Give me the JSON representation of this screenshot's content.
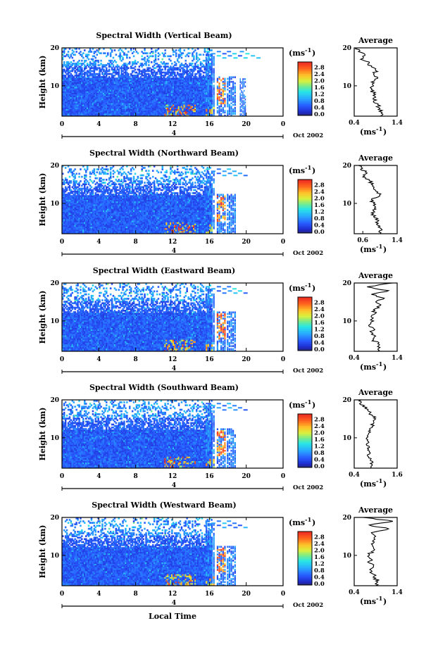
{
  "figure": {
    "xlabel": "Local Time",
    "date_label": "Oct 2002",
    "sub_axis_label": "4",
    "ylabel": "Height (km)",
    "colorbar_unit": "(ms",
    "colorbar_unit_exp": "-1",
    "colorbar_unit_close": ")",
    "profile_title": "Average"
  },
  "chart_data": [
    {
      "type": "heatmap",
      "title": "Spectral Width (Vertical Beam)",
      "x_ticks": [
        "0",
        "4",
        "8",
        "12",
        "16",
        "20",
        "0"
      ],
      "xlim": [
        0,
        24
      ],
      "y_ticks": [
        "20",
        "10"
      ],
      "ylim": [
        2,
        20
      ],
      "colorbar_ticks": [
        "2.8",
        "2.4",
        "2.0",
        "1.6",
        "1.2",
        "0.8",
        "0.4",
        "0.0"
      ],
      "colorbar_range": [
        0,
        3.2
      ],
      "profile": {
        "x_ticks": [
          "0.4",
          "1.4"
        ],
        "xlim": [
          0.4,
          1.4
        ],
        "y_ticks": [
          "20",
          "10"
        ],
        "heights": [
          20,
          19,
          18,
          17,
          16,
          15,
          14,
          13,
          12,
          11,
          10,
          9,
          8,
          7,
          6,
          5,
          4,
          3,
          2
        ],
        "values": [
          0.45,
          0.5,
          0.65,
          0.55,
          0.75,
          0.8,
          0.9,
          0.85,
          0.95,
          0.8,
          0.85,
          0.8,
          0.85,
          0.9,
          0.85,
          0.95,
          1.0,
          1.05,
          1.0
        ]
      }
    },
    {
      "type": "heatmap",
      "title": "Spectral Width (Northward Beam)",
      "x_ticks": [
        "0",
        "4",
        "8",
        "12",
        "16",
        "20",
        "0"
      ],
      "xlim": [
        0,
        24
      ],
      "y_ticks": [
        "20",
        "10"
      ],
      "ylim": [
        2,
        20
      ],
      "colorbar_ticks": [
        "2.8",
        "2.4",
        "2.0",
        "1.6",
        "1.2",
        "0.8",
        "0.4",
        "0.0"
      ],
      "colorbar_range": [
        0,
        3.2
      ],
      "profile": {
        "x_ticks": [
          "0.6",
          "1.4"
        ],
        "xlim": [
          0.4,
          1.4
        ],
        "y_ticks": [
          "20",
          "10"
        ],
        "heights": [
          20,
          19,
          18,
          17,
          16,
          15,
          14,
          13,
          12,
          11,
          10,
          9,
          8,
          7,
          6,
          5,
          4,
          3,
          2
        ],
        "values": [
          0.5,
          0.55,
          0.7,
          0.6,
          0.75,
          0.8,
          0.85,
          0.95,
          1.0,
          0.8,
          0.85,
          0.9,
          0.85,
          0.8,
          0.95,
          0.9,
          1.0,
          1.05,
          1.0
        ]
      }
    },
    {
      "type": "heatmap",
      "title": "Spectral Width (Eastward Beam)",
      "x_ticks": [
        "0",
        "4",
        "8",
        "12",
        "16",
        "20",
        "0"
      ],
      "xlim": [
        0,
        24
      ],
      "y_ticks": [
        "20",
        "10"
      ],
      "ylim": [
        2,
        20
      ],
      "colorbar_ticks": [
        "2.8",
        "2.4",
        "2.0",
        "1.6",
        "1.2",
        "0.8",
        "0.4",
        "0.0"
      ],
      "colorbar_range": [
        0,
        3.2
      ],
      "profile": {
        "x_ticks": [
          "0.4",
          "1.4"
        ],
        "xlim": [
          0.4,
          1.4
        ],
        "y_ticks": [
          "20",
          "10"
        ],
        "heights": [
          20,
          19,
          18,
          17,
          16,
          15,
          14,
          13,
          12,
          11,
          10,
          9,
          8,
          7,
          6,
          5,
          4,
          3,
          2
        ],
        "values": [
          1.3,
          0.7,
          1.2,
          0.8,
          1.1,
          0.9,
          1.0,
          0.85,
          0.9,
          0.8,
          0.85,
          0.75,
          0.85,
          0.8,
          0.9,
          0.85,
          0.95,
          1.0,
          0.95
        ]
      }
    },
    {
      "type": "heatmap",
      "title": "Spectral Width (Southward Beam)",
      "x_ticks": [
        "0",
        "4",
        "8",
        "12",
        "16",
        "20",
        "0"
      ],
      "xlim": [
        0,
        24
      ],
      "y_ticks": [
        "20",
        "10"
      ],
      "ylim": [
        2,
        20
      ],
      "colorbar_ticks": [
        "2.8",
        "2.4",
        "2.0",
        "1.6",
        "1.2",
        "0.8",
        "0.4",
        "0.0"
      ],
      "colorbar_range": [
        0,
        3.2
      ],
      "profile": {
        "x_ticks": [
          "0.4",
          "1.6"
        ],
        "xlim": [
          0.4,
          1.6
        ],
        "y_ticks": [
          "20",
          "10"
        ],
        "heights": [
          20,
          19,
          18,
          17,
          16,
          15,
          14,
          13,
          12,
          11,
          10,
          9,
          8,
          7,
          6,
          5,
          4,
          3,
          2
        ],
        "values": [
          0.6,
          0.55,
          0.75,
          0.8,
          0.9,
          1.0,
          0.95,
          0.9,
          0.85,
          0.8,
          0.75,
          0.8,
          0.75,
          0.8,
          0.85,
          0.8,
          0.85,
          0.9,
          0.85
        ]
      }
    },
    {
      "type": "heatmap",
      "title": "Spectral Width (Westward Beam)",
      "x_ticks": [
        "0",
        "4",
        "8",
        "12",
        "16",
        "20",
        "0"
      ],
      "xlim": [
        0,
        24
      ],
      "y_ticks": [
        "20",
        "10"
      ],
      "ylim": [
        2,
        20
      ],
      "colorbar_ticks": [
        "2.8",
        "2.4",
        "2.0",
        "1.6",
        "1.2",
        "0.8",
        "0.4",
        "0.0"
      ],
      "colorbar_range": [
        0,
        3.2
      ],
      "profile": {
        "x_ticks": [
          "0.4",
          "1.4"
        ],
        "xlim": [
          0.4,
          1.4
        ],
        "y_ticks": [
          "20",
          "10"
        ],
        "heights": [
          20,
          19,
          18,
          17,
          16,
          15,
          14,
          13,
          12,
          11,
          10,
          9,
          8,
          7,
          6,
          5,
          4,
          3,
          2
        ],
        "values": [
          0.6,
          1.3,
          0.75,
          1.2,
          0.8,
          0.9,
          0.85,
          0.8,
          0.85,
          0.8,
          0.75,
          0.8,
          0.75,
          0.85,
          0.8,
          0.85,
          0.9,
          0.95,
          0.9
        ]
      }
    }
  ]
}
